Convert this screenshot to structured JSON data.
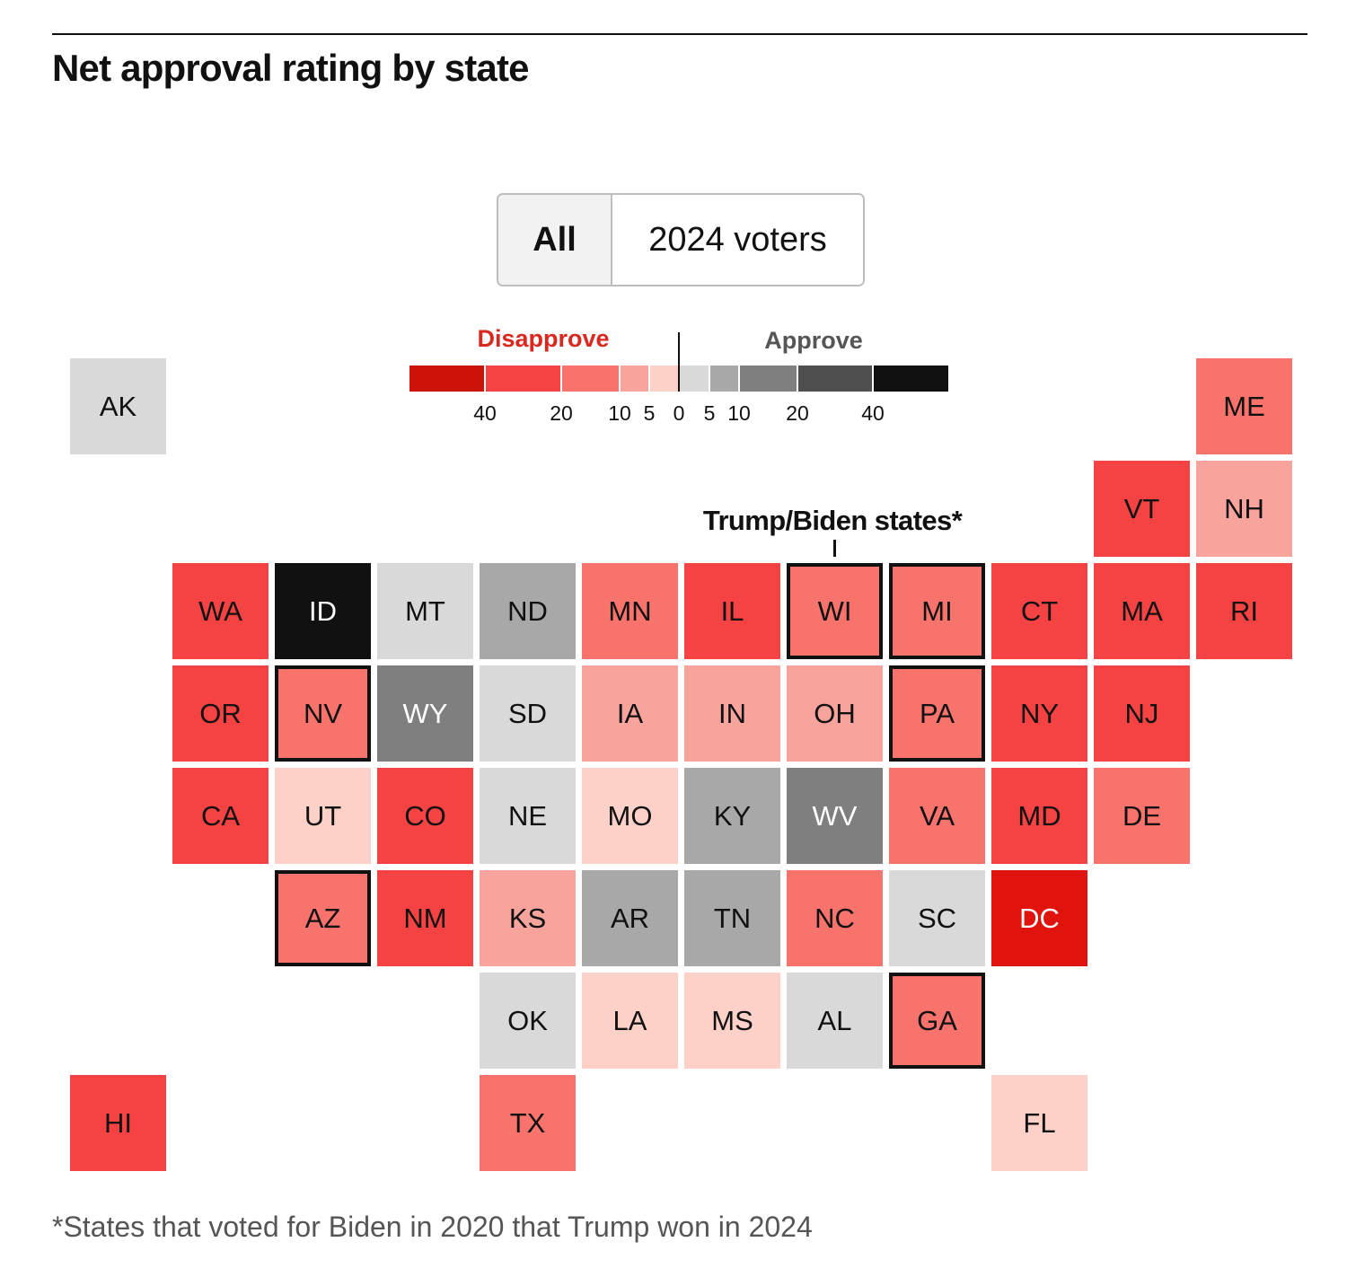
{
  "title": "Net approval rating by state",
  "toggle": {
    "options": [
      "All",
      "2024 voters"
    ],
    "selected": "All"
  },
  "annotation": "Trump/Biden states*",
  "footnote": "*States that voted for Biden in 2020 that Trump won in 2024",
  "chart_data": {
    "type": "heatmap",
    "title": "Net approval rating by state",
    "legend": {
      "left_label": "Disapprove",
      "right_label": "Approve",
      "ticks": [
        "40",
        "20",
        "10",
        "5",
        "0",
        "5",
        "10",
        "20",
        "40"
      ],
      "tick_values": [
        -40,
        -20,
        -10,
        -5,
        0,
        5,
        10,
        20,
        40
      ],
      "bins": [
        {
          "id": "D40+",
          "min": -50,
          "max": -40,
          "color": "#cc1209"
        },
        {
          "id": "D20-40",
          "min": -40,
          "max": -20,
          "color": "#f54242"
        },
        {
          "id": "D10-20",
          "min": -20,
          "max": -10,
          "color": "#f8736b"
        },
        {
          "id": "D5-10",
          "min": -10,
          "max": -5,
          "color": "#f8a39c"
        },
        {
          "id": "D0-5",
          "min": -5,
          "max": 0,
          "color": "#fdd0c8"
        },
        {
          "id": "A0-5",
          "min": 0,
          "max": 5,
          "color": "#d9d9d9"
        },
        {
          "id": "A5-10",
          "min": 5,
          "max": 10,
          "color": "#a8a8a8"
        },
        {
          "id": "A10-20",
          "min": 10,
          "max": 20,
          "color": "#7f7f7f"
        },
        {
          "id": "A20-40",
          "min": 20,
          "max": 40,
          "color": "#4f4f4f"
        },
        {
          "id": "A40+",
          "min": 40,
          "max": 50,
          "color": "#111111"
        }
      ]
    },
    "dc_color": "#e0140c",
    "states": [
      {
        "abbr": "AK",
        "row": 0,
        "col": 0,
        "bin": "A0-5"
      },
      {
        "abbr": "ME",
        "row": 0,
        "col": 11,
        "bin": "D10-20"
      },
      {
        "abbr": "VT",
        "row": 1,
        "col": 10,
        "bin": "D20-40"
      },
      {
        "abbr": "NH",
        "row": 1,
        "col": 11,
        "bin": "D5-10"
      },
      {
        "abbr": "WA",
        "row": 2,
        "col": 1,
        "bin": "D20-40"
      },
      {
        "abbr": "ID",
        "row": 2,
        "col": 2,
        "bin": "A40+"
      },
      {
        "abbr": "MT",
        "row": 2,
        "col": 3,
        "bin": "A0-5"
      },
      {
        "abbr": "ND",
        "row": 2,
        "col": 4,
        "bin": "A5-10"
      },
      {
        "abbr": "MN",
        "row": 2,
        "col": 5,
        "bin": "D10-20"
      },
      {
        "abbr": "IL",
        "row": 2,
        "col": 6,
        "bin": "D20-40"
      },
      {
        "abbr": "WI",
        "row": 2,
        "col": 7,
        "bin": "D10-20",
        "flip": true
      },
      {
        "abbr": "MI",
        "row": 2,
        "col": 8,
        "bin": "D10-20",
        "flip": true
      },
      {
        "abbr": "CT",
        "row": 2,
        "col": 9,
        "bin": "D20-40"
      },
      {
        "abbr": "MA",
        "row": 2,
        "col": 10,
        "bin": "D20-40"
      },
      {
        "abbr": "RI",
        "row": 2,
        "col": 11,
        "bin": "D20-40"
      },
      {
        "abbr": "OR",
        "row": 3,
        "col": 1,
        "bin": "D20-40"
      },
      {
        "abbr": "NV",
        "row": 3,
        "col": 2,
        "bin": "D10-20",
        "flip": true
      },
      {
        "abbr": "WY",
        "row": 3,
        "col": 3,
        "bin": "A10-20"
      },
      {
        "abbr": "SD",
        "row": 3,
        "col": 4,
        "bin": "A0-5"
      },
      {
        "abbr": "IA",
        "row": 3,
        "col": 5,
        "bin": "D5-10"
      },
      {
        "abbr": "IN",
        "row": 3,
        "col": 6,
        "bin": "D5-10"
      },
      {
        "abbr": "OH",
        "row": 3,
        "col": 7,
        "bin": "D5-10"
      },
      {
        "abbr": "PA",
        "row": 3,
        "col": 8,
        "bin": "D10-20",
        "flip": true
      },
      {
        "abbr": "NY",
        "row": 3,
        "col": 9,
        "bin": "D20-40"
      },
      {
        "abbr": "NJ",
        "row": 3,
        "col": 10,
        "bin": "D20-40"
      },
      {
        "abbr": "CA",
        "row": 4,
        "col": 1,
        "bin": "D20-40"
      },
      {
        "abbr": "UT",
        "row": 4,
        "col": 2,
        "bin": "D0-5"
      },
      {
        "abbr": "CO",
        "row": 4,
        "col": 3,
        "bin": "D20-40"
      },
      {
        "abbr": "NE",
        "row": 4,
        "col": 4,
        "bin": "A0-5"
      },
      {
        "abbr": "MO",
        "row": 4,
        "col": 5,
        "bin": "D0-5"
      },
      {
        "abbr": "KY",
        "row": 4,
        "col": 6,
        "bin": "A5-10"
      },
      {
        "abbr": "WV",
        "row": 4,
        "col": 7,
        "bin": "A10-20"
      },
      {
        "abbr": "VA",
        "row": 4,
        "col": 8,
        "bin": "D10-20"
      },
      {
        "abbr": "MD",
        "row": 4,
        "col": 9,
        "bin": "D20-40"
      },
      {
        "abbr": "DE",
        "row": 4,
        "col": 10,
        "bin": "D10-20"
      },
      {
        "abbr": "AZ",
        "row": 5,
        "col": 2,
        "bin": "D10-20",
        "flip": true
      },
      {
        "abbr": "NM",
        "row": 5,
        "col": 3,
        "bin": "D20-40"
      },
      {
        "abbr": "KS",
        "row": 5,
        "col": 4,
        "bin": "D5-10"
      },
      {
        "abbr": "AR",
        "row": 5,
        "col": 5,
        "bin": "A5-10"
      },
      {
        "abbr": "TN",
        "row": 5,
        "col": 6,
        "bin": "A5-10"
      },
      {
        "abbr": "NC",
        "row": 5,
        "col": 7,
        "bin": "D10-20"
      },
      {
        "abbr": "SC",
        "row": 5,
        "col": 8,
        "bin": "A0-5"
      },
      {
        "abbr": "DC",
        "row": 5,
        "col": 9,
        "bin": "D40+"
      },
      {
        "abbr": "OK",
        "row": 6,
        "col": 4,
        "bin": "A0-5"
      },
      {
        "abbr": "LA",
        "row": 6,
        "col": 5,
        "bin": "D0-5"
      },
      {
        "abbr": "MS",
        "row": 6,
        "col": 6,
        "bin": "D0-5"
      },
      {
        "abbr": "AL",
        "row": 6,
        "col": 7,
        "bin": "A0-5"
      },
      {
        "abbr": "GA",
        "row": 6,
        "col": 8,
        "bin": "D10-20",
        "flip": true
      },
      {
        "abbr": "HI",
        "row": 7,
        "col": 0,
        "bin": "D20-40"
      },
      {
        "abbr": "TX",
        "row": 7,
        "col": 4,
        "bin": "D10-20"
      },
      {
        "abbr": "FL",
        "row": 7,
        "col": 9,
        "bin": "D0-5"
      }
    ]
  }
}
